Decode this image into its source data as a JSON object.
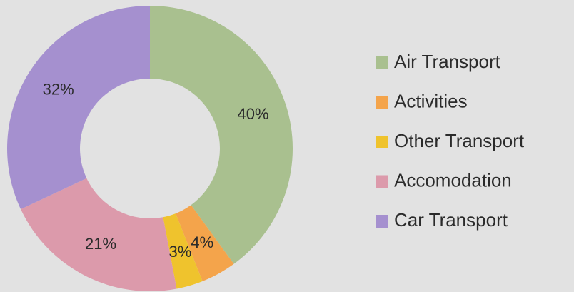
{
  "chart_data": {
    "type": "donut",
    "categories": [
      "Air Transport",
      "Activities",
      "Other Transport",
      "Accomodation",
      "Car Transport"
    ],
    "values": [
      40,
      4,
      3,
      21,
      32
    ],
    "value_labels": [
      "40%",
      "4%",
      "3%",
      "21%",
      "32%"
    ],
    "colors": [
      "#a9c08f",
      "#f4a44b",
      "#efc32d",
      "#dc9aab",
      "#a590cf"
    ],
    "legend": "right"
  }
}
